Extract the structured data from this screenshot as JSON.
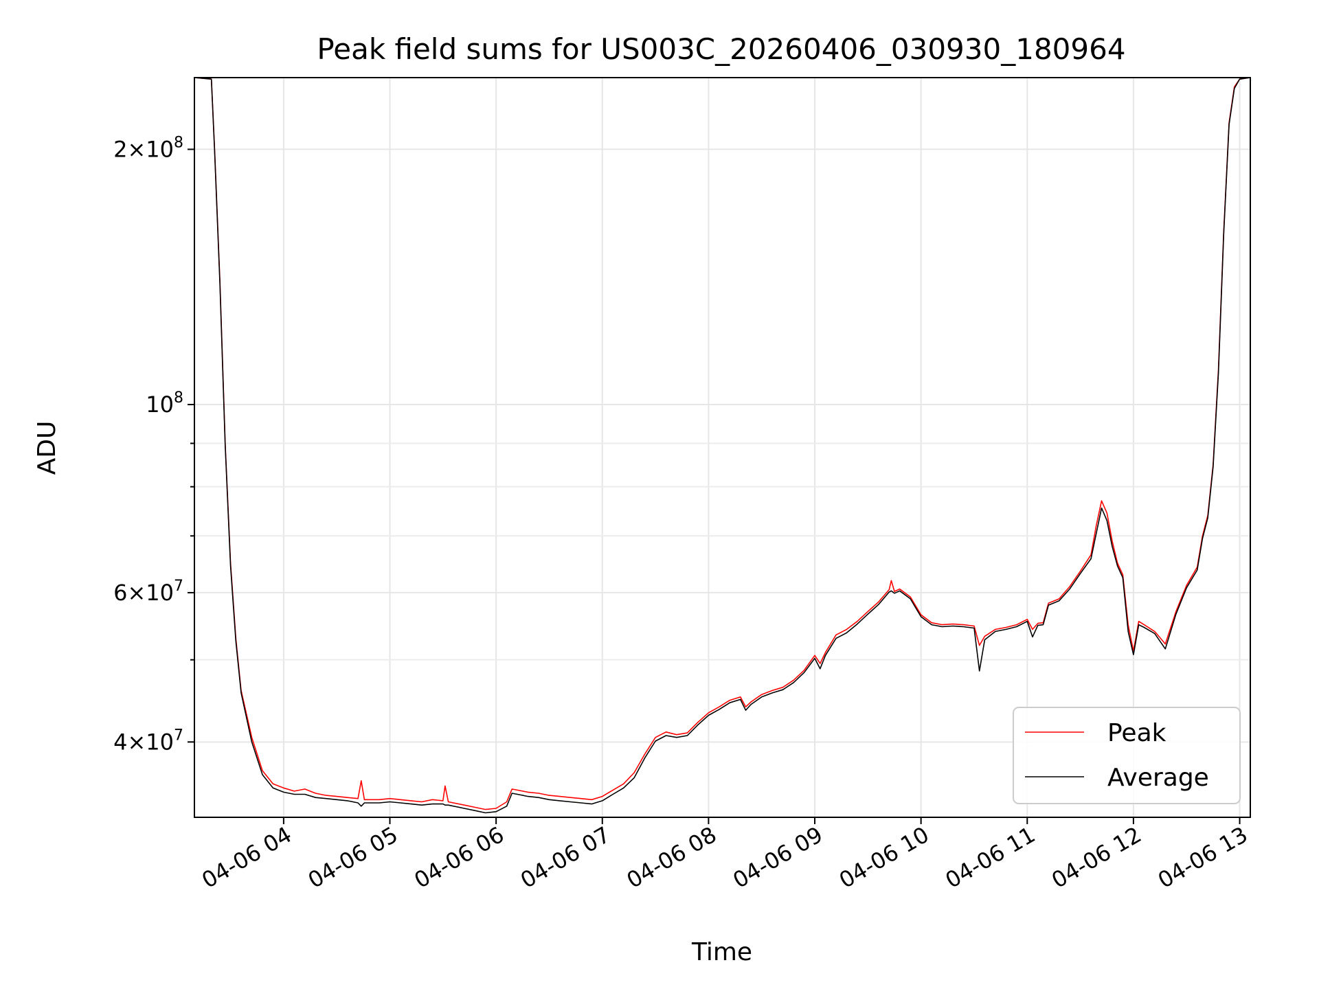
{
  "chart_data": {
    "type": "line",
    "title": "Peak field sums for US003C_20260406_030930_180964",
    "xlabel": "Time",
    "ylabel": "ADU",
    "yscale": "log",
    "ylim": [
      32600000,
      243000000
    ],
    "xlim_hours": [
      3.16,
      13.1
    ],
    "x_unit": "hour of day, 2026-04-06",
    "grid": true,
    "legend_position": "lower right",
    "x_ticks": [
      {
        "value": 4,
        "label": "04-06 04"
      },
      {
        "value": 5,
        "label": "04-06 05"
      },
      {
        "value": 6,
        "label": "04-06 06"
      },
      {
        "value": 7,
        "label": "04-06 07"
      },
      {
        "value": 8,
        "label": "04-06 08"
      },
      {
        "value": 9,
        "label": "04-06 09"
      },
      {
        "value": 10,
        "label": "04-06 10"
      },
      {
        "value": 11,
        "label": "04-06 11"
      },
      {
        "value": 12,
        "label": "04-06 12"
      },
      {
        "value": 13,
        "label": "04-06 13"
      }
    ],
    "y_ticks": [
      {
        "value": 40000000,
        "base": "4",
        "exp": "7"
      },
      {
        "value": 60000000,
        "base": "6",
        "exp": "7"
      },
      {
        "value": 100000000,
        "base": "",
        "exp": "8"
      },
      {
        "value": 200000000,
        "base": "2",
        "exp": "8"
      }
    ],
    "y_minor_ticks": [
      50000000,
      70000000,
      80000000,
      90000000
    ],
    "series": [
      {
        "name": "Peak",
        "color": "#ff0000",
        "points": [
          [
            3.16,
            243000000
          ],
          [
            3.32,
            242000000
          ],
          [
            3.35,
            200000000
          ],
          [
            3.4,
            140000000
          ],
          [
            3.45,
            90000000
          ],
          [
            3.5,
            65000000
          ],
          [
            3.55,
            53000000
          ],
          [
            3.6,
            46000000
          ],
          [
            3.7,
            40500000
          ],
          [
            3.8,
            37000000
          ],
          [
            3.9,
            35700000
          ],
          [
            4.0,
            35300000
          ],
          [
            4.1,
            35000000
          ],
          [
            4.2,
            35200000
          ],
          [
            4.3,
            34800000
          ],
          [
            4.4,
            34600000
          ],
          [
            4.5,
            34500000
          ],
          [
            4.6,
            34400000
          ],
          [
            4.7,
            34300000
          ],
          [
            4.73,
            36000000
          ],
          [
            4.76,
            34200000
          ],
          [
            4.9,
            34200000
          ],
          [
            5.0,
            34300000
          ],
          [
            5.1,
            34200000
          ],
          [
            5.2,
            34100000
          ],
          [
            5.3,
            34000000
          ],
          [
            5.4,
            34200000
          ],
          [
            5.5,
            34100000
          ],
          [
            5.52,
            35500000
          ],
          [
            5.55,
            34000000
          ],
          [
            5.7,
            33700000
          ],
          [
            5.8,
            33500000
          ],
          [
            5.9,
            33300000
          ],
          [
            6.0,
            33400000
          ],
          [
            6.1,
            34000000
          ],
          [
            6.15,
            35200000
          ],
          [
            6.2,
            35100000
          ],
          [
            6.3,
            34900000
          ],
          [
            6.4,
            34800000
          ],
          [
            6.5,
            34600000
          ],
          [
            6.6,
            34500000
          ],
          [
            6.7,
            34400000
          ],
          [
            6.8,
            34300000
          ],
          [
            6.9,
            34200000
          ],
          [
            7.0,
            34500000
          ],
          [
            7.1,
            35100000
          ],
          [
            7.2,
            35700000
          ],
          [
            7.3,
            36800000
          ],
          [
            7.4,
            38700000
          ],
          [
            7.5,
            40500000
          ],
          [
            7.6,
            41100000
          ],
          [
            7.7,
            40800000
          ],
          [
            7.8,
            41000000
          ],
          [
            7.9,
            42200000
          ],
          [
            8.0,
            43300000
          ],
          [
            8.1,
            44000000
          ],
          [
            8.2,
            44800000
          ],
          [
            8.3,
            45200000
          ],
          [
            8.35,
            44000000
          ],
          [
            8.4,
            44600000
          ],
          [
            8.5,
            45500000
          ],
          [
            8.6,
            46000000
          ],
          [
            8.7,
            46400000
          ],
          [
            8.8,
            47300000
          ],
          [
            8.9,
            48600000
          ],
          [
            9.0,
            50600000
          ],
          [
            9.05,
            49500000
          ],
          [
            9.1,
            51000000
          ],
          [
            9.2,
            53500000
          ],
          [
            9.3,
            54300000
          ],
          [
            9.4,
            55500000
          ],
          [
            9.5,
            57000000
          ],
          [
            9.6,
            58500000
          ],
          [
            9.7,
            60500000
          ],
          [
            9.72,
            62000000
          ],
          [
            9.75,
            60200000
          ],
          [
            9.8,
            60600000
          ],
          [
            9.9,
            59300000
          ],
          [
            10.0,
            56500000
          ],
          [
            10.1,
            55300000
          ],
          [
            10.2,
            55000000
          ],
          [
            10.3,
            55100000
          ],
          [
            10.4,
            55000000
          ],
          [
            10.5,
            54800000
          ],
          [
            10.55,
            52000000
          ],
          [
            10.6,
            53300000
          ],
          [
            10.7,
            54300000
          ],
          [
            10.8,
            54600000
          ],
          [
            10.9,
            55000000
          ],
          [
            11.0,
            55800000
          ],
          [
            11.05,
            54300000
          ],
          [
            11.1,
            55200000
          ],
          [
            11.15,
            55300000
          ],
          [
            11.2,
            58300000
          ],
          [
            11.3,
            59000000
          ],
          [
            11.4,
            61000000
          ],
          [
            11.5,
            63600000
          ],
          [
            11.6,
            66500000
          ],
          [
            11.65,
            72000000
          ],
          [
            11.7,
            77000000
          ],
          [
            11.75,
            74500000
          ],
          [
            11.8,
            69000000
          ],
          [
            11.85,
            65000000
          ],
          [
            11.9,
            63000000
          ],
          [
            11.95,
            55000000
          ],
          [
            12.0,
            51200000
          ],
          [
            12.05,
            55500000
          ],
          [
            12.1,
            55000000
          ],
          [
            12.2,
            54000000
          ],
          [
            12.3,
            52200000
          ],
          [
            12.4,
            57000000
          ],
          [
            12.5,
            61200000
          ],
          [
            12.6,
            64300000
          ],
          [
            12.65,
            70000000
          ],
          [
            12.7,
            74000000
          ],
          [
            12.75,
            85000000
          ],
          [
            12.8,
            110000000
          ],
          [
            12.85,
            160000000
          ],
          [
            12.9,
            215000000
          ],
          [
            12.95,
            237000000
          ],
          [
            13.0,
            242000000
          ],
          [
            13.1,
            243000000
          ]
        ]
      },
      {
        "name": "Average",
        "color": "#000000",
        "points": [
          [
            3.16,
            243000000
          ],
          [
            3.32,
            242000000
          ],
          [
            3.35,
            199000000
          ],
          [
            3.4,
            139000000
          ],
          [
            3.45,
            89500000
          ],
          [
            3.5,
            64500000
          ],
          [
            3.55,
            52600000
          ],
          [
            3.6,
            45700000
          ],
          [
            3.7,
            40000000
          ],
          [
            3.8,
            36600000
          ],
          [
            3.9,
            35300000
          ],
          [
            4.0,
            34900000
          ],
          [
            4.1,
            34700000
          ],
          [
            4.2,
            34700000
          ],
          [
            4.3,
            34400000
          ],
          [
            4.4,
            34300000
          ],
          [
            4.5,
            34200000
          ],
          [
            4.6,
            34100000
          ],
          [
            4.7,
            33900000
          ],
          [
            4.73,
            33600000
          ],
          [
            4.76,
            33900000
          ],
          [
            4.9,
            33900000
          ],
          [
            5.0,
            34000000
          ],
          [
            5.1,
            33900000
          ],
          [
            5.2,
            33800000
          ],
          [
            5.3,
            33700000
          ],
          [
            5.4,
            33800000
          ],
          [
            5.5,
            33800000
          ],
          [
            5.52,
            33700000
          ],
          [
            5.55,
            33700000
          ],
          [
            5.7,
            33400000
          ],
          [
            5.8,
            33200000
          ],
          [
            5.9,
            33000000
          ],
          [
            6.0,
            33100000
          ],
          [
            6.1,
            33600000
          ],
          [
            6.15,
            34800000
          ],
          [
            6.2,
            34700000
          ],
          [
            6.3,
            34500000
          ],
          [
            6.4,
            34400000
          ],
          [
            6.5,
            34200000
          ],
          [
            6.6,
            34100000
          ],
          [
            6.7,
            34000000
          ],
          [
            6.8,
            33900000
          ],
          [
            6.9,
            33800000
          ],
          [
            7.0,
            34100000
          ],
          [
            7.1,
            34700000
          ],
          [
            7.2,
            35300000
          ],
          [
            7.3,
            36300000
          ],
          [
            7.4,
            38300000
          ],
          [
            7.5,
            40100000
          ],
          [
            7.6,
            40700000
          ],
          [
            7.7,
            40500000
          ],
          [
            7.8,
            40700000
          ],
          [
            7.9,
            41900000
          ],
          [
            8.0,
            43000000
          ],
          [
            8.1,
            43700000
          ],
          [
            8.2,
            44500000
          ],
          [
            8.3,
            44900000
          ],
          [
            8.35,
            43600000
          ],
          [
            8.4,
            44300000
          ],
          [
            8.5,
            45200000
          ],
          [
            8.6,
            45700000
          ],
          [
            8.7,
            46100000
          ],
          [
            8.8,
            47000000
          ],
          [
            8.9,
            48300000
          ],
          [
            9.0,
            50200000
          ],
          [
            9.05,
            48800000
          ],
          [
            9.1,
            50600000
          ],
          [
            9.2,
            53000000
          ],
          [
            9.3,
            53800000
          ],
          [
            9.4,
            55100000
          ],
          [
            9.5,
            56600000
          ],
          [
            9.6,
            58100000
          ],
          [
            9.7,
            60100000
          ],
          [
            9.72,
            60300000
          ],
          [
            9.75,
            59900000
          ],
          [
            9.8,
            60300000
          ],
          [
            9.9,
            59000000
          ],
          [
            10.0,
            56200000
          ],
          [
            10.1,
            55000000
          ],
          [
            10.2,
            54700000
          ],
          [
            10.3,
            54800000
          ],
          [
            10.4,
            54700000
          ],
          [
            10.5,
            54500000
          ],
          [
            10.55,
            48500000
          ],
          [
            10.6,
            52800000
          ],
          [
            10.7,
            54000000
          ],
          [
            10.8,
            54300000
          ],
          [
            10.9,
            54700000
          ],
          [
            11.0,
            55500000
          ],
          [
            11.05,
            53200000
          ],
          [
            11.1,
            54900000
          ],
          [
            11.15,
            55000000
          ],
          [
            11.2,
            58000000
          ],
          [
            11.3,
            58700000
          ],
          [
            11.4,
            60600000
          ],
          [
            11.5,
            63200000
          ],
          [
            11.6,
            65800000
          ],
          [
            11.65,
            70500000
          ],
          [
            11.7,
            75500000
          ],
          [
            11.75,
            73000000
          ],
          [
            11.8,
            68000000
          ],
          [
            11.85,
            64500000
          ],
          [
            11.9,
            62500000
          ],
          [
            11.95,
            54000000
          ],
          [
            12.0,
            50700000
          ],
          [
            12.05,
            55000000
          ],
          [
            12.1,
            54600000
          ],
          [
            12.2,
            53700000
          ],
          [
            12.3,
            51500000
          ],
          [
            12.4,
            56600000
          ],
          [
            12.5,
            60800000
          ],
          [
            12.6,
            63800000
          ],
          [
            12.65,
            69500000
          ],
          [
            12.7,
            73500000
          ],
          [
            12.75,
            84500000
          ],
          [
            12.8,
            109000000
          ],
          [
            12.85,
            159000000
          ],
          [
            12.9,
            214000000
          ],
          [
            12.95,
            236000000
          ],
          [
            13.0,
            242000000
          ],
          [
            13.1,
            243000000
          ]
        ]
      }
    ]
  }
}
